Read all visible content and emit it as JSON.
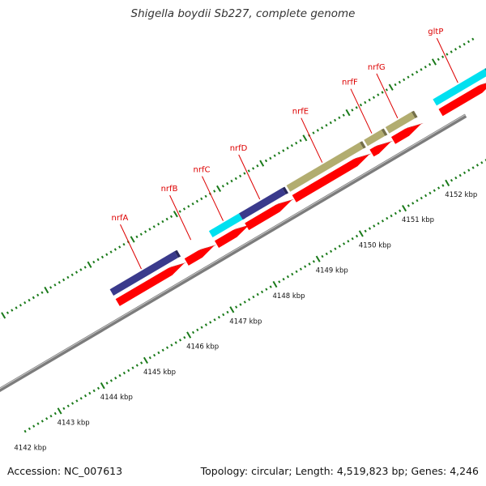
{
  "title": "Shigella boydii Sb227, complete genome",
  "footer": {
    "accession": "Accession: NC_007613",
    "topology": "Topology: circular; Length: 4,519,823 bp; Genes: 4,246"
  },
  "colors": {
    "backbone": "#888888",
    "tick": "#1a7a1a",
    "gene_label": "#dd0000",
    "cds": "#ff0000",
    "navy": "#3a3a8c",
    "cyan": "#00e0f0",
    "olive": "#b2ad70"
  },
  "ruler": {
    "unit": "kbp",
    "labels": [
      "4142 kbp",
      "4143 kbp",
      "4144 kbp",
      "4145 kbp",
      "4146 kbp",
      "4147 kbp",
      "4148 kbp",
      "4149 kbp",
      "4150 kbp",
      "4151 kbp",
      "4152 kbp"
    ]
  },
  "genes": [
    {
      "name": "nrfA",
      "start_kbp": 4145.1,
      "end_kbp": 4146.6,
      "feature_color": "navy"
    },
    {
      "name": "nrfB",
      "start_kbp": 4146.7,
      "end_kbp": 4147.3,
      "feature_color": "none"
    },
    {
      "name": "nrfC",
      "start_kbp": 4147.4,
      "end_kbp": 4148.1,
      "feature_color": "cyan"
    },
    {
      "name": "nrfD",
      "start_kbp": 4148.1,
      "end_kbp": 4149.1,
      "feature_color": "navy"
    },
    {
      "name": "nrfE",
      "start_kbp": 4149.2,
      "end_kbp": 4150.9,
      "feature_color": "olive"
    },
    {
      "name": "nrfF",
      "start_kbp": 4151.0,
      "end_kbp": 4151.4,
      "feature_color": "olive"
    },
    {
      "name": "nrfG",
      "start_kbp": 4151.5,
      "end_kbp": 4152.1,
      "feature_color": "olive"
    },
    {
      "name": "gltP",
      "start_kbp": 4152.6,
      "end_kbp": 4153.8,
      "feature_color": "cyan"
    }
  ]
}
